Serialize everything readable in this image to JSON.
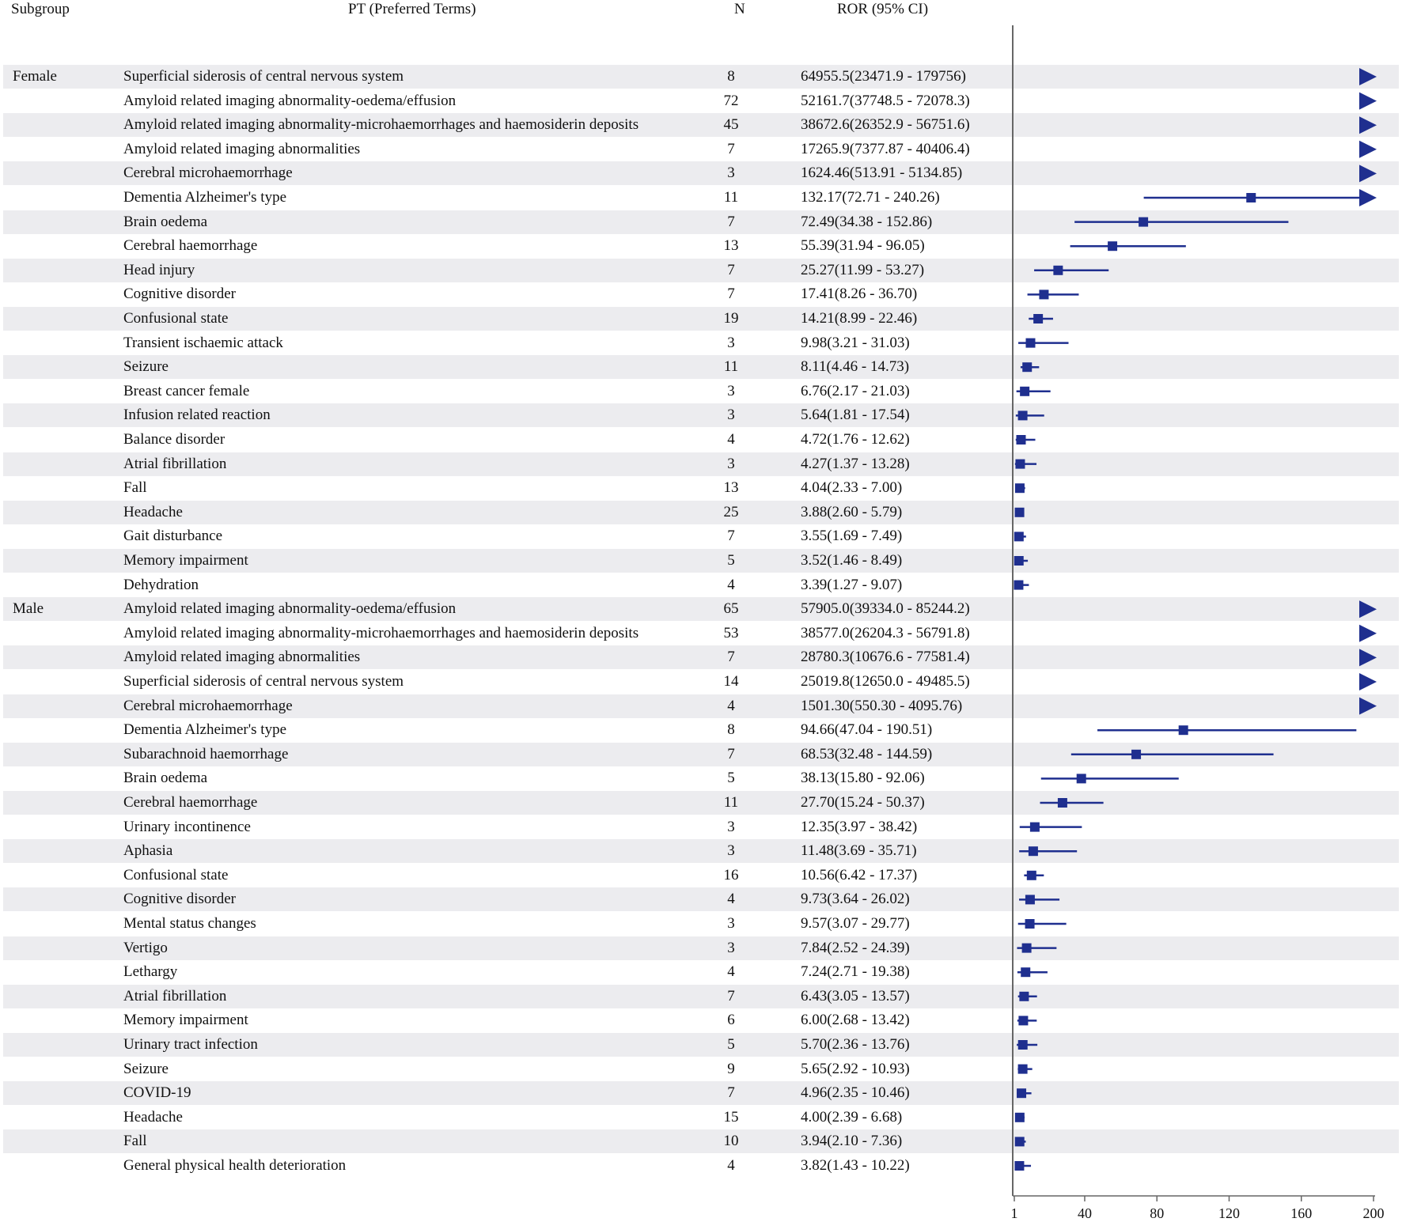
{
  "headers": {
    "subgroup": "Subgroup",
    "pt": "PT (Preferred Terms)",
    "n": "N",
    "ror": "ROR (95% CI)"
  },
  "colors": {
    "marker": "#1f2f8f",
    "shade": "#ececef",
    "axis": "#666666"
  },
  "chart_data": {
    "type": "forest",
    "title": "",
    "xlabel": "",
    "xlim": [
      1,
      200
    ],
    "x_ticks": [
      "1",
      "40",
      "80",
      "120",
      "160",
      "200"
    ],
    "arrow_note": "rows with ROR or upper CI beyond 200 are drawn with an arrow at the axis edge",
    "rows": [
      {
        "subgroup": "Female",
        "pt": "Superficial siderosis of central nervous system",
        "n": "8",
        "ror_text": "64955.5(23471.9 - 179756)",
        "ror": 64955.5,
        "lo": 23471.9,
        "hi": 179756
      },
      {
        "subgroup": "",
        "pt": "Amyloid related imaging abnormality-oedema/effusion",
        "n": "72",
        "ror_text": "52161.7(37748.5 - 72078.3)",
        "ror": 52161.7,
        "lo": 37748.5,
        "hi": 72078.3
      },
      {
        "subgroup": "",
        "pt": "Amyloid related imaging abnormality-microhaemorrhages and haemosiderin deposits",
        "n": "45",
        "ror_text": "38672.6(26352.9 - 56751.6)",
        "ror": 38672.6,
        "lo": 26352.9,
        "hi": 56751.6
      },
      {
        "subgroup": "",
        "pt": "Amyloid related imaging abnormalities",
        "n": "7",
        "ror_text": "17265.9(7377.87 - 40406.4)",
        "ror": 17265.9,
        "lo": 7377.87,
        "hi": 40406.4
      },
      {
        "subgroup": "",
        "pt": "Cerebral microhaemorrhage",
        "n": "3",
        "ror_text": "1624.46(513.91 - 5134.85)",
        "ror": 1624.46,
        "lo": 513.91,
        "hi": 5134.85
      },
      {
        "subgroup": "",
        "pt": "Dementia Alzheimer's type",
        "n": "11",
        "ror_text": "132.17(72.71 - 240.26)",
        "ror": 132.17,
        "lo": 72.71,
        "hi": 240.26
      },
      {
        "subgroup": "",
        "pt": "Brain oedema",
        "n": "7",
        "ror_text": "72.49(34.38 - 152.86)",
        "ror": 72.49,
        "lo": 34.38,
        "hi": 152.86
      },
      {
        "subgroup": "",
        "pt": "Cerebral haemorrhage",
        "n": "13",
        "ror_text": "55.39(31.94 - 96.05)",
        "ror": 55.39,
        "lo": 31.94,
        "hi": 96.05
      },
      {
        "subgroup": "",
        "pt": "Head injury",
        "n": "7",
        "ror_text": "25.27(11.99 - 53.27)",
        "ror": 25.27,
        "lo": 11.99,
        "hi": 53.27
      },
      {
        "subgroup": "",
        "pt": "Cognitive disorder",
        "n": "7",
        "ror_text": "17.41(8.26 - 36.70)",
        "ror": 17.41,
        "lo": 8.26,
        "hi": 36.7
      },
      {
        "subgroup": "",
        "pt": "Confusional state",
        "n": "19",
        "ror_text": "14.21(8.99 - 22.46)",
        "ror": 14.21,
        "lo": 8.99,
        "hi": 22.46
      },
      {
        "subgroup": "",
        "pt": "Transient ischaemic attack",
        "n": "3",
        "ror_text": "9.98(3.21 - 31.03)",
        "ror": 9.98,
        "lo": 3.21,
        "hi": 31.03
      },
      {
        "subgroup": "",
        "pt": "Seizure",
        "n": "11",
        "ror_text": "8.11(4.46 - 14.73)",
        "ror": 8.11,
        "lo": 4.46,
        "hi": 14.73
      },
      {
        "subgroup": "",
        "pt": "Breast cancer female",
        "n": "3",
        "ror_text": "6.76(2.17 - 21.03)",
        "ror": 6.76,
        "lo": 2.17,
        "hi": 21.03
      },
      {
        "subgroup": "",
        "pt": "Infusion related reaction",
        "n": "3",
        "ror_text": "5.64(1.81 - 17.54)",
        "ror": 5.64,
        "lo": 1.81,
        "hi": 17.54
      },
      {
        "subgroup": "",
        "pt": "Balance disorder",
        "n": "4",
        "ror_text": "4.72(1.76 - 12.62)",
        "ror": 4.72,
        "lo": 1.76,
        "hi": 12.62
      },
      {
        "subgroup": "",
        "pt": "Atrial fibrillation",
        "n": "3",
        "ror_text": "4.27(1.37 - 13.28)",
        "ror": 4.27,
        "lo": 1.37,
        "hi": 13.28
      },
      {
        "subgroup": "",
        "pt": "Fall",
        "n": "13",
        "ror_text": "4.04(2.33 - 7.00)",
        "ror": 4.04,
        "lo": 2.33,
        "hi": 7.0
      },
      {
        "subgroup": "",
        "pt": "Headache",
        "n": "25",
        "ror_text": "3.88(2.60 - 5.79)",
        "ror": 3.88,
        "lo": 2.6,
        "hi": 5.79
      },
      {
        "subgroup": "",
        "pt": "Gait disturbance",
        "n": "7",
        "ror_text": "3.55(1.69 - 7.49)",
        "ror": 3.55,
        "lo": 1.69,
        "hi": 7.49
      },
      {
        "subgroup": "",
        "pt": "Memory impairment",
        "n": "5",
        "ror_text": "3.52(1.46 - 8.49)",
        "ror": 3.52,
        "lo": 1.46,
        "hi": 8.49
      },
      {
        "subgroup": "",
        "pt": "Dehydration",
        "n": "4",
        "ror_text": "3.39(1.27 - 9.07)",
        "ror": 3.39,
        "lo": 1.27,
        "hi": 9.07
      },
      {
        "subgroup": "Male",
        "pt": "Amyloid related imaging abnormality-oedema/effusion",
        "n": "65",
        "ror_text": "57905.0(39334.0 - 85244.2)",
        "ror": 57905.0,
        "lo": 39334.0,
        "hi": 85244.2
      },
      {
        "subgroup": "",
        "pt": "Amyloid related imaging abnormality-microhaemorrhages and haemosiderin deposits",
        "n": "53",
        "ror_text": "38577.0(26204.3 - 56791.8)",
        "ror": 38577.0,
        "lo": 26204.3,
        "hi": 56791.8
      },
      {
        "subgroup": "",
        "pt": "Amyloid related imaging abnormalities",
        "n": "7",
        "ror_text": "28780.3(10676.6 - 77581.4)",
        "ror": 28780.3,
        "lo": 10676.6,
        "hi": 77581.4
      },
      {
        "subgroup": "",
        "pt": "Superficial siderosis of central nervous system",
        "n": "14",
        "ror_text": "25019.8(12650.0 - 49485.5)",
        "ror": 25019.8,
        "lo": 12650.0,
        "hi": 49485.5
      },
      {
        "subgroup": "",
        "pt": "Cerebral microhaemorrhage",
        "n": "4",
        "ror_text": "1501.30(550.30 - 4095.76)",
        "ror": 1501.3,
        "lo": 550.3,
        "hi": 4095.76
      },
      {
        "subgroup": "",
        "pt": "Dementia Alzheimer's type",
        "n": "8",
        "ror_text": "94.66(47.04 - 190.51)",
        "ror": 94.66,
        "lo": 47.04,
        "hi": 190.51
      },
      {
        "subgroup": "",
        "pt": "Subarachnoid haemorrhage",
        "n": "7",
        "ror_text": "68.53(32.48 - 144.59)",
        "ror": 68.53,
        "lo": 32.48,
        "hi": 144.59
      },
      {
        "subgroup": "",
        "pt": "Brain oedema",
        "n": "5",
        "ror_text": "38.13(15.80 - 92.06)",
        "ror": 38.13,
        "lo": 15.8,
        "hi": 92.06
      },
      {
        "subgroup": "",
        "pt": "Cerebral haemorrhage",
        "n": "11",
        "ror_text": "27.70(15.24 - 50.37)",
        "ror": 27.7,
        "lo": 15.24,
        "hi": 50.37
      },
      {
        "subgroup": "",
        "pt": "Urinary incontinence",
        "n": "3",
        "ror_text": "12.35(3.97 - 38.42)",
        "ror": 12.35,
        "lo": 3.97,
        "hi": 38.42
      },
      {
        "subgroup": "",
        "pt": "Aphasia",
        "n": "3",
        "ror_text": "11.48(3.69 - 35.71)",
        "ror": 11.48,
        "lo": 3.69,
        "hi": 35.71
      },
      {
        "subgroup": "",
        "pt": "Confusional state",
        "n": "16",
        "ror_text": "10.56(6.42 - 17.37)",
        "ror": 10.56,
        "lo": 6.42,
        "hi": 17.37
      },
      {
        "subgroup": "",
        "pt": "Cognitive disorder",
        "n": "4",
        "ror_text": "9.73(3.64 - 26.02)",
        "ror": 9.73,
        "lo": 3.64,
        "hi": 26.02
      },
      {
        "subgroup": "",
        "pt": "Mental status changes",
        "n": "3",
        "ror_text": "9.57(3.07 - 29.77)",
        "ror": 9.57,
        "lo": 3.07,
        "hi": 29.77
      },
      {
        "subgroup": "",
        "pt": "Vertigo",
        "n": "3",
        "ror_text": "7.84(2.52 - 24.39)",
        "ror": 7.84,
        "lo": 2.52,
        "hi": 24.39
      },
      {
        "subgroup": "",
        "pt": "Lethargy",
        "n": "4",
        "ror_text": "7.24(2.71 - 19.38)",
        "ror": 7.24,
        "lo": 2.71,
        "hi": 19.38
      },
      {
        "subgroup": "",
        "pt": "Atrial fibrillation",
        "n": "7",
        "ror_text": "6.43(3.05 - 13.57)",
        "ror": 6.43,
        "lo": 3.05,
        "hi": 13.57
      },
      {
        "subgroup": "",
        "pt": "Memory impairment",
        "n": "6",
        "ror_text": "6.00(2.68 - 13.42)",
        "ror": 6.0,
        "lo": 2.68,
        "hi": 13.42
      },
      {
        "subgroup": "",
        "pt": "Urinary tract infection",
        "n": "5",
        "ror_text": "5.70(2.36 - 13.76)",
        "ror": 5.7,
        "lo": 2.36,
        "hi": 13.76
      },
      {
        "subgroup": "",
        "pt": "Seizure",
        "n": "9",
        "ror_text": "5.65(2.92 - 10.93)",
        "ror": 5.65,
        "lo": 2.92,
        "hi": 10.93
      },
      {
        "subgroup": "",
        "pt": "COVID-19",
        "n": "7",
        "ror_text": "4.96(2.35 - 10.46)",
        "ror": 4.96,
        "lo": 2.35,
        "hi": 10.46
      },
      {
        "subgroup": "",
        "pt": "Headache",
        "n": "15",
        "ror_text": "4.00(2.39 - 6.68)",
        "ror": 4.0,
        "lo": 2.39,
        "hi": 6.68
      },
      {
        "subgroup": "",
        "pt": "Fall",
        "n": "10",
        "ror_text": "3.94(2.10 - 7.36)",
        "ror": 3.94,
        "lo": 2.1,
        "hi": 7.36
      },
      {
        "subgroup": "",
        "pt": "General physical health deterioration",
        "n": "4",
        "ror_text": "3.82(1.43 - 10.22)",
        "ror": 3.82,
        "lo": 1.43,
        "hi": 10.22
      }
    ]
  }
}
